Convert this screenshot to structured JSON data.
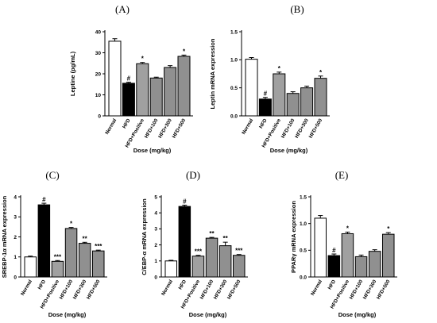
{
  "chart_data": [
    {
      "panel": "(A)",
      "type": "bar",
      "categories": [
        "Normal",
        "HFD",
        "HFD+Positive",
        "HFD+100",
        "HFD+300",
        "HFD+500"
      ],
      "values": [
        35.5,
        15.5,
        24.8,
        18.0,
        23.0,
        28.3
      ],
      "errors": [
        1.2,
        0.5,
        0.6,
        0.4,
        0.9,
        0.6
      ],
      "colors": [
        "#ffffff",
        "#000000",
        "#a0a0a0",
        "#909090",
        "#909090",
        "#909090"
      ],
      "sig": [
        "",
        "#",
        "*",
        "",
        "",
        "*"
      ],
      "ylabel": "Leptine (pg/mL)",
      "xlabel": "Dose  (mg/kg)",
      "ylim": [
        0,
        40
      ],
      "yticks": [
        0,
        10,
        20,
        30,
        40
      ],
      "ytick_labels": [
        "0",
        "10",
        "20",
        "30",
        "40"
      ]
    },
    {
      "panel": "(B)",
      "type": "bar",
      "categories": [
        "Normal",
        "HFD",
        "HFD+Positive",
        "HFD+100",
        "HFD+300",
        "HFD+500"
      ],
      "values": [
        1.01,
        0.3,
        0.75,
        0.4,
        0.5,
        0.67
      ],
      "errors": [
        0.03,
        0.03,
        0.03,
        0.03,
        0.03,
        0.04
      ],
      "colors": [
        "#ffffff",
        "#000000",
        "#a0a0a0",
        "#909090",
        "#909090",
        "#909090"
      ],
      "sig": [
        "",
        "#",
        "*",
        "",
        "",
        "*"
      ],
      "ylabel": "Leptin mRNA expression",
      "xlabel": "Dose  (mg/kg)",
      "ylim": [
        0,
        1.5
      ],
      "yticks": [
        0,
        0.5,
        1.0,
        1.5
      ],
      "ytick_labels": [
        "0.0",
        "0.5",
        "1.0",
        "1.5"
      ]
    },
    {
      "panel": "(C)",
      "type": "bar",
      "categories": [
        "Normal",
        "HFD",
        "HFD+Positive",
        "HFD+100",
        "HFD+300",
        "HFD+500"
      ],
      "values": [
        1.0,
        3.6,
        0.78,
        2.42,
        1.68,
        1.3
      ],
      "errors": [
        0.04,
        0.08,
        0.04,
        0.05,
        0.05,
        0.04
      ],
      "colors": [
        "#ffffff",
        "#000000",
        "#a0a0a0",
        "#909090",
        "#909090",
        "#909090"
      ],
      "sig": [
        "",
        "#",
        "***",
        "*",
        "**",
        "***"
      ],
      "ylabel": "SREBP-1α mRNA expression",
      "xlabel": "Dose  (mg/kg)",
      "ylim": [
        0,
        4
      ],
      "yticks": [
        0,
        1,
        2,
        3,
        4
      ],
      "ytick_labels": [
        "0",
        "1",
        "2",
        "3",
        "4"
      ]
    },
    {
      "panel": "(D)",
      "type": "bar",
      "categories": [
        "Normal",
        "HFD",
        "HFD+Positive",
        "HFD+100",
        "HFD+300",
        "HFD+500"
      ],
      "values": [
        1.0,
        4.4,
        1.3,
        2.42,
        1.95,
        1.35
      ],
      "errors": [
        0.04,
        0.08,
        0.05,
        0.05,
        0.22,
        0.05
      ],
      "colors": [
        "#ffffff",
        "#000000",
        "#a0a0a0",
        "#909090",
        "#909090",
        "#909090"
      ],
      "sig": [
        "",
        "#",
        "***",
        "**",
        "**",
        "***"
      ],
      "ylabel": "C/EBP-α mRNA expression",
      "xlabel": "Dose  (mg/kg)",
      "ylim": [
        0,
        5
      ],
      "yticks": [
        0,
        1,
        2,
        3,
        4,
        5
      ],
      "ytick_labels": [
        "0",
        "1",
        "2",
        "3",
        "4",
        "5"
      ]
    },
    {
      "panel": "(E)",
      "type": "bar",
      "categories": [
        "Normal",
        "HFD",
        "HFD+Positive",
        "HFD+100",
        "HFD+300",
        "HFD+500"
      ],
      "values": [
        1.1,
        0.4,
        0.81,
        0.38,
        0.48,
        0.8
      ],
      "errors": [
        0.05,
        0.03,
        0.03,
        0.03,
        0.03,
        0.03
      ],
      "colors": [
        "#ffffff",
        "#000000",
        "#a0a0a0",
        "#909090",
        "#909090",
        "#909090"
      ],
      "sig": [
        "",
        "#",
        "*",
        "",
        "",
        "*"
      ],
      "ylabel": "PPARγ mRNA expression",
      "xlabel": "Dose  (mg/kg)",
      "ylim": [
        0,
        1.5
      ],
      "yticks": [
        0,
        0.5,
        1.0,
        1.5
      ],
      "ytick_labels": [
        "0.0",
        "0.5",
        "1.0",
        "1.5"
      ]
    }
  ]
}
